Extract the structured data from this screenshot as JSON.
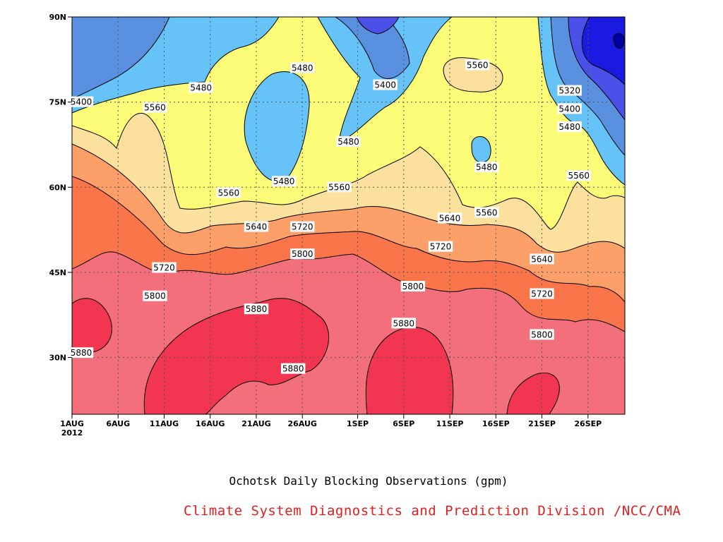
{
  "chart_data": {
    "type": "contour",
    "title": "Ochotsk Daily Blocking Observations (gpm)",
    "credit": "Climate System Diagnostics and Prediction Division /NCC/CMA",
    "x_ticks": [
      "1AUG",
      "6AUG",
      "11AUG",
      "16AUG",
      "21AUG",
      "26AUG",
      "1SEP",
      "6SEP",
      "11SEP",
      "16SEP",
      "21SEP",
      "26SEP"
    ],
    "x_year": "2012",
    "y_ticks": [
      "30N",
      "45N",
      "60N",
      "75N",
      "90N"
    ],
    "xlim": [
      "2012-08-01",
      "2012-09-30"
    ],
    "ylim": [
      20,
      90
    ],
    "grid": true,
    "levels": [
      5240,
      5320,
      5400,
      5480,
      5560,
      5640,
      5720,
      5800,
      5880
    ],
    "fill_colors": [
      "#0000a0",
      "#1a1ae0",
      "#4a50e8",
      "#5a90e0",
      "#66c3f8",
      "#fcfc78",
      "#fce19e",
      "#fc9f68",
      "#fa754a",
      "#f46f7c",
      "#f23550"
    ],
    "contour_labels": [
      {
        "text": "5400",
        "date": "2012-08-02",
        "lat": 75.0
      },
      {
        "text": "5560",
        "date": "2012-08-10",
        "lat": 74.0
      },
      {
        "text": "5480",
        "date": "2012-08-15",
        "lat": 77.5
      },
      {
        "text": "5480",
        "date": "2012-08-26",
        "lat": 81.0
      },
      {
        "text": "5400",
        "date": "2012-09-04",
        "lat": 78.0
      },
      {
        "text": "5560",
        "date": "2012-09-14",
        "lat": 81.5
      },
      {
        "text": "5320",
        "date": "2012-09-24",
        "lat": 77.0
      },
      {
        "text": "5400",
        "date": "2012-09-24",
        "lat": 73.8
      },
      {
        "text": "5480",
        "date": "2012-09-24",
        "lat": 70.6
      },
      {
        "text": "5480",
        "date": "2012-08-31",
        "lat": 68.0
      },
      {
        "text": "5480",
        "date": "2012-09-15",
        "lat": 63.5
      },
      {
        "text": "5480",
        "date": "2012-08-24",
        "lat": 61.0
      },
      {
        "text": "5560",
        "date": "2012-08-18",
        "lat": 59.0
      },
      {
        "text": "5560",
        "date": "2012-08-30",
        "lat": 60.0
      },
      {
        "text": "5560",
        "date": "2012-09-25",
        "lat": 62.0
      },
      {
        "text": "5560",
        "date": "2012-09-15",
        "lat": 55.5
      },
      {
        "text": "5640",
        "date": "2012-08-21",
        "lat": 53.0
      },
      {
        "text": "5720",
        "date": "2012-08-26",
        "lat": 53.0
      },
      {
        "text": "5640",
        "date": "2012-09-11",
        "lat": 54.5
      },
      {
        "text": "5720",
        "date": "2012-09-10",
        "lat": 49.5
      },
      {
        "text": "5640",
        "date": "2012-09-21",
        "lat": 47.3
      },
      {
        "text": "5800",
        "date": "2012-08-26",
        "lat": 48.2
      },
      {
        "text": "5720",
        "date": "2012-08-11",
        "lat": 45.8
      },
      {
        "text": "5800",
        "date": "2012-08-10",
        "lat": 40.8
      },
      {
        "text": "5800",
        "date": "2012-09-07",
        "lat": 42.5
      },
      {
        "text": "5720",
        "date": "2012-09-21",
        "lat": 41.2
      },
      {
        "text": "5800",
        "date": "2012-09-21",
        "lat": 34.0
      },
      {
        "text": "5880",
        "date": "2012-08-21",
        "lat": 38.5
      },
      {
        "text": "5880",
        "date": "2012-09-06",
        "lat": 36.0
      },
      {
        "text": "5880",
        "date": "2012-08-02",
        "lat": 30.8
      },
      {
        "text": "5880",
        "date": "2012-08-25",
        "lat": 28.0
      }
    ]
  }
}
